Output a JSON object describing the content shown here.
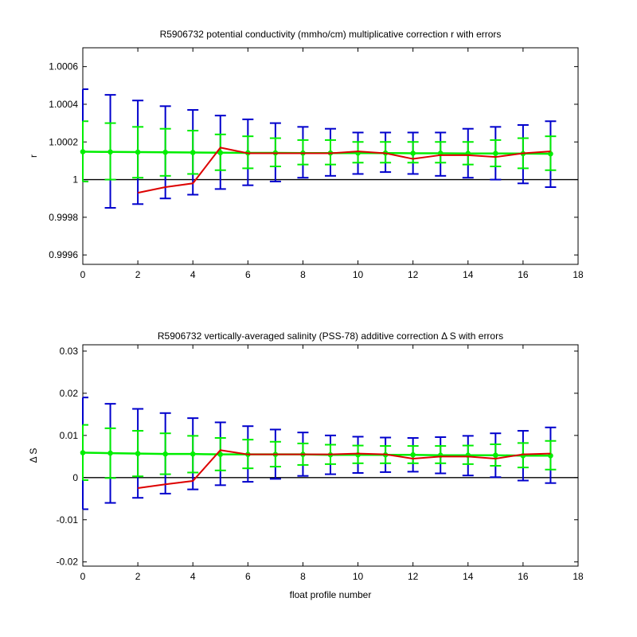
{
  "chart_data": [
    {
      "type": "line",
      "title": "R5906732 potential conductivity (mmho/cm) multiplicative correction r with errors",
      "xlabel": "",
      "ylabel": "r",
      "xlim": [
        0,
        18
      ],
      "ylim": [
        0.99955,
        1.0007
      ],
      "xticks": [
        0,
        2,
        4,
        6,
        8,
        10,
        12,
        14,
        16,
        18
      ],
      "xtick_labels": [
        "0",
        "2",
        "4",
        "6",
        "8",
        "10",
        "12",
        "14",
        "16",
        "18"
      ],
      "yticks": [
        0.9996,
        0.9998,
        1.0,
        1.0002,
        1.0004,
        1.0006
      ],
      "ytick_labels": [
        "0.9996",
        "0.9998",
        "1",
        "1.0002",
        "1.0004",
        "1.0006"
      ],
      "grid": false,
      "reference_line": 1.0,
      "blue_errorbars": {
        "color": "#0000cc",
        "x": [
          0,
          1,
          2,
          3,
          4,
          5,
          6,
          7,
          8,
          9,
          10,
          11,
          12,
          13,
          14,
          15,
          16,
          17
        ],
        "low": [
          0.99999,
          0.99985,
          0.99987,
          0.9999,
          0.99992,
          0.99995,
          0.99997,
          0.99999,
          1.00001,
          1.00002,
          1.00003,
          1.00004,
          1.00003,
          1.00002,
          1.00001,
          1.0,
          0.99998,
          0.99996
        ],
        "high": [
          1.00048,
          1.00045,
          1.00042,
          1.00039,
          1.00037,
          1.00034,
          1.00032,
          1.0003,
          1.00028,
          1.00027,
          1.00025,
          1.00025,
          1.00025,
          1.00025,
          1.00027,
          1.00028,
          1.00029,
          1.00031
        ]
      },
      "green_errorbars": {
        "color": "#00ee00",
        "x": [
          0,
          1,
          2,
          3,
          4,
          5,
          6,
          7,
          8,
          9,
          10,
          11,
          12,
          13,
          14,
          15,
          16,
          17
        ],
        "y": [
          1.000148,
          1.000147,
          1.000146,
          1.000145,
          1.000144,
          1.000143,
          1.000142,
          1.000142,
          1.000141,
          1.000141,
          1.000141,
          1.000141,
          1.00014,
          1.00014,
          1.000139,
          1.000139,
          1.000138,
          1.000137
        ],
        "low": [
          0.99999,
          1.0,
          1.00001,
          1.00002,
          1.00003,
          1.00005,
          1.00006,
          1.00007,
          1.00008,
          1.00008,
          1.00009,
          1.00009,
          1.00009,
          1.00009,
          1.00008,
          1.00007,
          1.00006,
          1.00005
        ],
        "high": [
          1.00031,
          1.0003,
          1.00028,
          1.00027,
          1.00026,
          1.00024,
          1.00023,
          1.00022,
          1.00021,
          1.00021,
          1.0002,
          1.0002,
          1.0002,
          1.0002,
          1.0002,
          1.00021,
          1.00022,
          1.00023
        ]
      },
      "red_line": {
        "color": "#dd0000",
        "x": [
          2,
          3,
          4,
          5,
          6,
          7,
          8,
          9,
          10,
          11,
          12,
          13,
          14,
          15,
          16,
          17
        ],
        "y": [
          0.99993,
          0.99996,
          0.99998,
          1.00017,
          1.00014,
          1.00014,
          1.00014,
          1.00014,
          1.00015,
          1.00014,
          1.00011,
          1.00013,
          1.00013,
          1.00012,
          1.00014,
          1.00015
        ]
      }
    },
    {
      "type": "line",
      "title": "R5906732 vertically-averaged salinity (PSS-78) additive correction Δ S with errors",
      "xlabel": "float profile number",
      "ylabel": "Δ S",
      "xlim": [
        0,
        18
      ],
      "ylim": [
        -0.021,
        0.0315
      ],
      "xticks": [
        0,
        2,
        4,
        6,
        8,
        10,
        12,
        14,
        16,
        18
      ],
      "xtick_labels": [
        "0",
        "2",
        "4",
        "6",
        "8",
        "10",
        "12",
        "14",
        "16",
        "18"
      ],
      "yticks": [
        -0.02,
        -0.01,
        0,
        0.01,
        0.02,
        0.03
      ],
      "ytick_labels": [
        "-0.02",
        "-0.01",
        "0",
        "0.01",
        "0.02",
        "0.03"
      ],
      "grid": false,
      "reference_line": 0,
      "blue_errorbars": {
        "color": "#0000cc",
        "x": [
          0,
          1,
          2,
          3,
          4,
          5,
          6,
          7,
          8,
          9,
          10,
          11,
          12,
          13,
          14,
          15,
          16,
          17
        ],
        "low": [
          -0.0075,
          -0.006,
          -0.0048,
          -0.0038,
          -0.0028,
          -0.0018,
          -0.001,
          -0.0003,
          0.0004,
          0.0008,
          0.0011,
          0.0013,
          0.0014,
          0.001,
          0.0005,
          0.0001,
          -0.0007,
          -0.0013
        ],
        "high": [
          0.019,
          0.0175,
          0.0163,
          0.0153,
          0.0141,
          0.0131,
          0.0122,
          0.0114,
          0.0107,
          0.01,
          0.0097,
          0.0095,
          0.0094,
          0.0096,
          0.0099,
          0.0105,
          0.0111,
          0.0119
        ]
      },
      "green_errorbars": {
        "color": "#00ee00",
        "x": [
          0,
          1,
          2,
          3,
          4,
          5,
          6,
          7,
          8,
          9,
          10,
          11,
          12,
          13,
          14,
          15,
          16,
          17
        ],
        "y": [
          0.0059,
          0.0058,
          0.0057,
          0.0056,
          0.0056,
          0.0055,
          0.0055,
          0.0055,
          0.0055,
          0.0054,
          0.0054,
          0.0054,
          0.0054,
          0.0053,
          0.0053,
          0.0053,
          0.0052,
          0.0052
        ],
        "low": [
          -0.0006,
          -0.0001,
          0.0003,
          0.0008,
          0.0012,
          0.0017,
          0.0022,
          0.0026,
          0.003,
          0.0032,
          0.0034,
          0.0034,
          0.0034,
          0.0034,
          0.0032,
          0.0028,
          0.0024,
          0.0019
        ],
        "high": [
          0.0125,
          0.0117,
          0.0111,
          0.0105,
          0.0099,
          0.0094,
          0.009,
          0.0085,
          0.0081,
          0.0078,
          0.0076,
          0.0075,
          0.0075,
          0.0075,
          0.0076,
          0.0079,
          0.0082,
          0.0087
        ]
      },
      "red_line": {
        "color": "#dd0000",
        "x": [
          2,
          3,
          4,
          5,
          6,
          7,
          8,
          9,
          10,
          11,
          12,
          13,
          14,
          15,
          16,
          17
        ],
        "y": [
          -0.0025,
          -0.0016,
          -0.0008,
          0.0065,
          0.0055,
          0.0055,
          0.0055,
          0.0055,
          0.0057,
          0.0055,
          0.0045,
          0.005,
          0.005,
          0.0045,
          0.0055,
          0.0057
        ]
      }
    }
  ]
}
